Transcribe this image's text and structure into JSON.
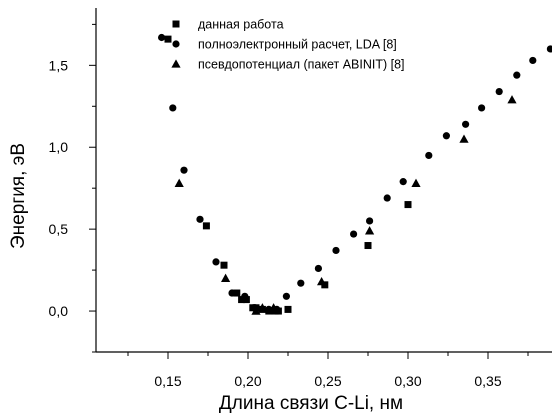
{
  "chart_data": {
    "type": "scatter",
    "title": "",
    "xlabel": "Длина связи C-Li, нм",
    "ylabel": "Энергия, эВ",
    "xlim": [
      0.105,
      0.39
    ],
    "ylim": [
      -0.25,
      1.85
    ],
    "xticks": [
      0.15,
      0.2,
      0.25,
      0.3,
      0.35
    ],
    "xtick_labels": [
      "0,15",
      "0,20",
      "0,25",
      "0,30",
      "0,35"
    ],
    "yticks": [
      0.0,
      0.5,
      1.0,
      1.5
    ],
    "ytick_labels": [
      "0,0",
      "0,5",
      "1,0",
      "1,5"
    ],
    "grid": false,
    "legend_position": "top-right",
    "series": [
      {
        "name": "данная работа",
        "marker": "square",
        "color": "#000000",
        "points": [
          {
            "x": 0.15,
            "y": 1.66
          },
          {
            "x": 0.174,
            "y": 0.52
          },
          {
            "x": 0.185,
            "y": 0.28
          },
          {
            "x": 0.193,
            "y": 0.11
          },
          {
            "x": 0.196,
            "y": 0.07
          },
          {
            "x": 0.199,
            "y": 0.07
          },
          {
            "x": 0.203,
            "y": 0.02
          },
          {
            "x": 0.205,
            "y": 0.02
          },
          {
            "x": 0.209,
            "y": 0.01
          },
          {
            "x": 0.213,
            "y": 0.0
          },
          {
            "x": 0.217,
            "y": 0.0
          },
          {
            "x": 0.219,
            "y": 0.0
          },
          {
            "x": 0.225,
            "y": 0.01
          },
          {
            "x": 0.248,
            "y": 0.16
          },
          {
            "x": 0.275,
            "y": 0.4
          },
          {
            "x": 0.3,
            "y": 0.65
          }
        ]
      },
      {
        "name": "полноэлектронный расчет, LDA [8]",
        "marker": "circle",
        "color": "#000000",
        "points": [
          {
            "x": 0.146,
            "y": 1.67
          },
          {
            "x": 0.153,
            "y": 1.24
          },
          {
            "x": 0.16,
            "y": 0.86
          },
          {
            "x": 0.17,
            "y": 0.56
          },
          {
            "x": 0.18,
            "y": 0.3
          },
          {
            "x": 0.19,
            "y": 0.11
          },
          {
            "x": 0.198,
            "y": 0.09
          },
          {
            "x": 0.204,
            "y": 0.02
          },
          {
            "x": 0.213,
            "y": 0.01
          },
          {
            "x": 0.218,
            "y": 0.01
          },
          {
            "x": 0.224,
            "y": 0.09
          },
          {
            "x": 0.233,
            "y": 0.17
          },
          {
            "x": 0.244,
            "y": 0.26
          },
          {
            "x": 0.255,
            "y": 0.37
          },
          {
            "x": 0.266,
            "y": 0.47
          },
          {
            "x": 0.276,
            "y": 0.55
          },
          {
            "x": 0.287,
            "y": 0.69
          },
          {
            "x": 0.297,
            "y": 0.79
          },
          {
            "x": 0.313,
            "y": 0.95
          },
          {
            "x": 0.324,
            "y": 1.07
          },
          {
            "x": 0.336,
            "y": 1.14
          },
          {
            "x": 0.346,
            "y": 1.24
          },
          {
            "x": 0.357,
            "y": 1.34
          },
          {
            "x": 0.368,
            "y": 1.44
          },
          {
            "x": 0.378,
            "y": 1.53
          },
          {
            "x": 0.389,
            "y": 1.6
          }
        ]
      },
      {
        "name": "псевдопотенциал (пакет ABINIT) [8]",
        "marker": "triangle",
        "color": "#000000",
        "points": [
          {
            "x": 0.157,
            "y": 0.78
          },
          {
            "x": 0.186,
            "y": 0.2
          },
          {
            "x": 0.205,
            "y": 0.0
          },
          {
            "x": 0.209,
            "y": 0.02
          },
          {
            "x": 0.216,
            "y": 0.02
          },
          {
            "x": 0.246,
            "y": 0.18
          },
          {
            "x": 0.276,
            "y": 0.49
          },
          {
            "x": 0.305,
            "y": 0.78
          },
          {
            "x": 0.335,
            "y": 1.05
          },
          {
            "x": 0.365,
            "y": 1.29
          }
        ]
      }
    ]
  }
}
